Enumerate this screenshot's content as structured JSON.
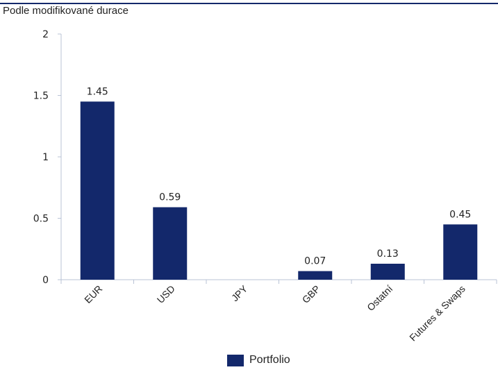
{
  "subtitle": "Podle modifikované durace",
  "colors": {
    "bar": "#13286b",
    "axis": "#b9c3d6",
    "text": "#222222"
  },
  "chart_data": {
    "type": "bar",
    "categories": [
      "EUR",
      "USD",
      "JPY",
      "GBP",
      "Ostatní",
      "Futures & Swaps"
    ],
    "series": [
      {
        "name": "Portfolio",
        "values": [
          1.45,
          0.59,
          null,
          0.07,
          0.13,
          0.45
        ]
      }
    ],
    "data_labels": [
      "1.45",
      "0.59",
      "",
      "0.07",
      "0.13",
      "0.45"
    ],
    "yticks": [
      "0",
      "0.5",
      "1",
      "1.5",
      "2"
    ],
    "ylim": [
      0,
      2
    ],
    "legend_position": "bottom-center",
    "grid": false
  }
}
